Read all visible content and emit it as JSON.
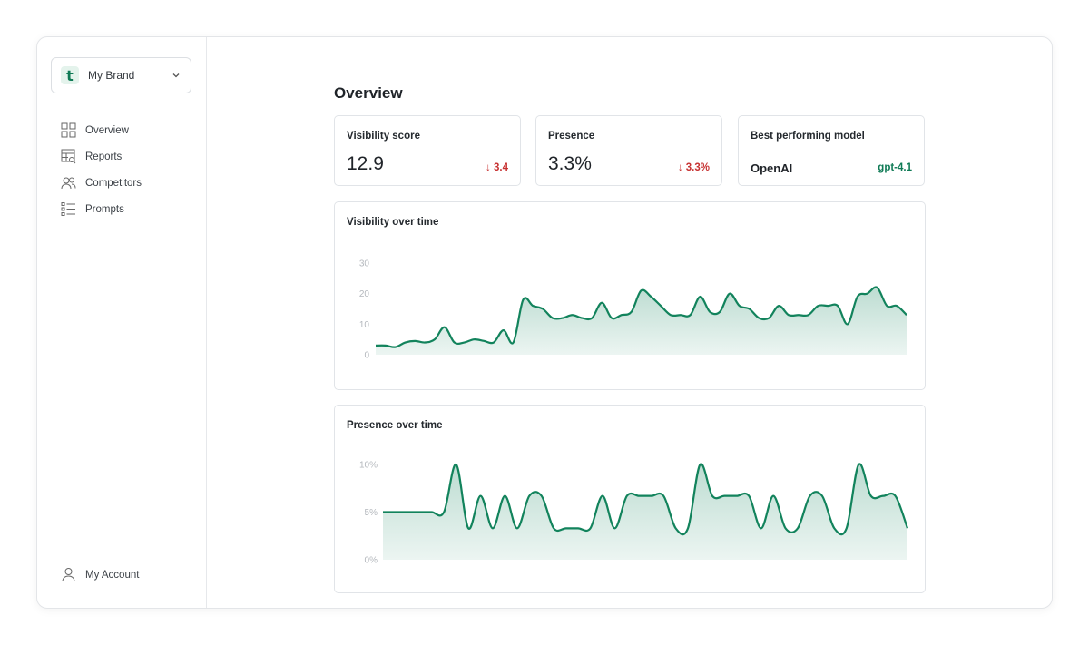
{
  "brand": {
    "logo_letter": "t",
    "name": "My Brand"
  },
  "nav": [
    {
      "label": "Overview",
      "icon": "grid-icon"
    },
    {
      "label": "Reports",
      "icon": "table-search-icon"
    },
    {
      "label": "Competitors",
      "icon": "users-icon"
    },
    {
      "label": "Prompts",
      "icon": "list-icon"
    }
  ],
  "account": {
    "label": "My Account",
    "icon": "user-icon"
  },
  "page": {
    "title": "Overview"
  },
  "kpis": {
    "visibility": {
      "label": "Visibility score",
      "value": "12.9",
      "delta": "3.4"
    },
    "presence": {
      "label": "Presence",
      "value": "3.3%",
      "delta": "3.3%"
    },
    "model": {
      "label": "Best performing model",
      "value": "OpenAI",
      "tag": "gpt-4.1"
    }
  },
  "colors": {
    "accent": "#12835c",
    "fill": "#d6ede3",
    "negative": "#c73232"
  },
  "chart_data": [
    {
      "type": "area",
      "title": "Visibility over time",
      "yticks": [
        "0",
        "10",
        "20",
        "30"
      ],
      "ylim": [
        0,
        30
      ],
      "values": [
        3,
        3,
        2.5,
        4,
        4.5,
        4,
        5,
        9,
        4,
        4,
        5,
        4.5,
        4,
        8,
        4,
        18,
        16,
        15,
        12,
        12,
        13,
        12,
        12,
        17,
        12,
        13,
        14,
        21,
        19,
        16,
        13,
        13,
        13,
        19,
        14,
        14,
        20,
        16,
        15,
        12,
        12,
        16,
        13,
        13,
        13,
        16,
        16,
        16,
        10,
        19,
        20,
        22,
        16,
        16,
        13
      ]
    },
    {
      "type": "area",
      "title": "Presence over time",
      "yticks": [
        "0%",
        "5%",
        "10%"
      ],
      "ylim": [
        0,
        10
      ],
      "values": [
        5,
        5,
        5,
        5,
        5,
        5,
        10,
        3.3,
        6.7,
        3.3,
        6.7,
        3.3,
        6.7,
        6.7,
        3.3,
        3.3,
        3.3,
        3.3,
        6.7,
        3.3,
        6.7,
        6.7,
        6.7,
        6.7,
        3.3,
        3.3,
        10,
        6.7,
        6.7,
        6.7,
        6.7,
        3.3,
        6.7,
        3.3,
        3.3,
        6.7,
        6.7,
        3.3,
        3.3,
        10,
        6.7,
        6.7,
        6.7,
        3.3
      ]
    }
  ]
}
